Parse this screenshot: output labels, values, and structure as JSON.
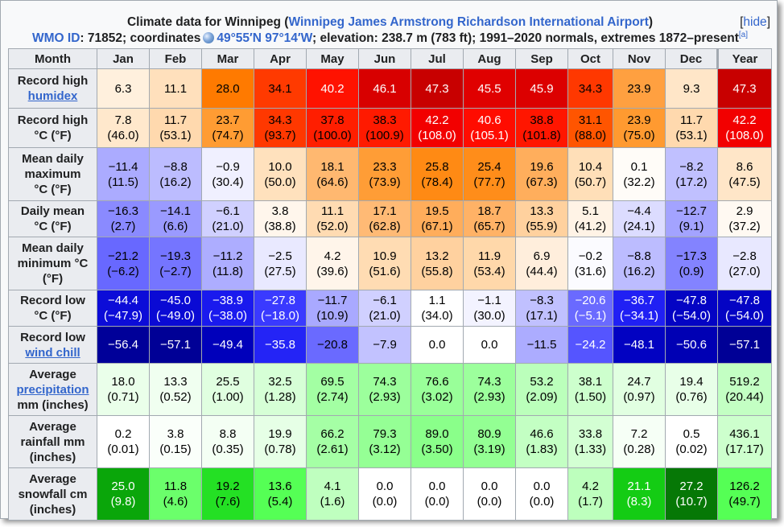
{
  "caption": {
    "prefix": "Climate data for Winnipeg (",
    "link": "Winnipeg James Armstrong Richardson International Airport",
    "suffix": ")",
    "hide_label": "hide",
    "wmo_label": "WMO ID",
    "wmo_rest": ": 71852; coordinates",
    "coords": "49°55′N 97°14′W",
    "rest": "; elevation: 238.7 m (783 ft); 1991–2020 normals, extremes 1872–present",
    "ref": "[a]"
  },
  "colors": {
    "link": "#3366cc",
    "header_bg": "#eaecf0",
    "border": "#a2a9b1"
  },
  "columns": [
    "Month",
    "Jan",
    "Feb",
    "Mar",
    "Apr",
    "May",
    "Jun",
    "Jul",
    "Aug",
    "Sep",
    "Oct",
    "Nov",
    "Dec",
    "Year"
  ],
  "rows": [
    {
      "label": [
        "Record high"
      ],
      "link": "humidex",
      "h": 49,
      "fg": "#000",
      "values": [
        {
          "v": [
            "6.3"
          ],
          "bg": "#fff0dd"
        },
        {
          "v": [
            "11.1"
          ],
          "bg": "#ffe0bc"
        },
        {
          "v": [
            "28.0"
          ],
          "bg": "#ff7a00"
        },
        {
          "v": [
            "34.1"
          ],
          "bg": "#ff3a00"
        },
        {
          "v": [
            "40.2"
          ],
          "bg": "#ff1200",
          "fg": "#fff"
        },
        {
          "v": [
            "46.1"
          ],
          "bg": "#d80000",
          "fg": "#fff"
        },
        {
          "v": [
            "47.3"
          ],
          "bg": "#c80000",
          "fg": "#fff"
        },
        {
          "v": [
            "45.5"
          ],
          "bg": "#e00000",
          "fg": "#fff"
        },
        {
          "v": [
            "45.9"
          ],
          "bg": "#dc0000",
          "fg": "#fff"
        },
        {
          "v": [
            "34.3"
          ],
          "bg": "#ff3800"
        },
        {
          "v": [
            "23.9"
          ],
          "bg": "#ffa040"
        },
        {
          "v": [
            "9.3"
          ],
          "bg": "#ffe6c8"
        },
        {
          "v": [
            "47.3"
          ],
          "bg": "#c80000",
          "fg": "#fff"
        }
      ]
    },
    {
      "label": [
        "Record high",
        "°C (°F)"
      ],
      "h": 49,
      "values": [
        {
          "v": [
            "7.8",
            "(46.0)"
          ],
          "bg": "#ffe8cc"
        },
        {
          "v": [
            "11.7",
            "(53.1)"
          ],
          "bg": "#ffd9ae"
        },
        {
          "v": [
            "23.7",
            "(74.7)"
          ],
          "bg": "#ff9c33"
        },
        {
          "v": [
            "34.3",
            "(93.7)"
          ],
          "bg": "#ff3800"
        },
        {
          "v": [
            "37.8",
            "(100.0)"
          ],
          "bg": "#ff1e00"
        },
        {
          "v": [
            "38.3",
            "(100.9)"
          ],
          "bg": "#ff1a00"
        },
        {
          "v": [
            "42.2",
            "(108.0)"
          ],
          "bg": "#f20000",
          "fg": "#fff"
        },
        {
          "v": [
            "40.6",
            "(105.1)"
          ],
          "bg": "#ff0c00",
          "fg": "#fff"
        },
        {
          "v": [
            "38.8",
            "(101.8)"
          ],
          "bg": "#ff1600"
        },
        {
          "v": [
            "31.1",
            "(88.0)"
          ],
          "bg": "#ff5500"
        },
        {
          "v": [
            "23.9",
            "(75.0)"
          ],
          "bg": "#ff9a30"
        },
        {
          "v": [
            "11.7",
            "(53.1)"
          ],
          "bg": "#ffd9ae"
        },
        {
          "v": [
            "42.2",
            "(108.0)"
          ],
          "bg": "#f20000",
          "fg": "#fff"
        }
      ]
    },
    {
      "label": [
        "Mean daily",
        "maximum",
        "°C (°F)"
      ],
      "h": 66,
      "values": [
        {
          "v": [
            "−11.4",
            "(11.5)"
          ],
          "bg": "#ababff"
        },
        {
          "v": [
            "−8.8",
            "(16.2)"
          ],
          "bg": "#bcbcff"
        },
        {
          "v": [
            "−0.9",
            "(30.4)"
          ],
          "bg": "#f0f0ff"
        },
        {
          "v": [
            "10.0",
            "(50.0)"
          ],
          "bg": "#ffe1bd"
        },
        {
          "v": [
            "18.1",
            "(64.6)"
          ],
          "bg": "#ffb870"
        },
        {
          "v": [
            "23.3",
            "(73.9)"
          ],
          "bg": "#ff9d36"
        },
        {
          "v": [
            "25.8",
            "(78.4)"
          ],
          "bg": "#ff8a14"
        },
        {
          "v": [
            "25.4",
            "(77.7)"
          ],
          "bg": "#ff8d1a"
        },
        {
          "v": [
            "19.6",
            "(67.3)"
          ],
          "bg": "#ffae5c"
        },
        {
          "v": [
            "10.4",
            "(50.7)"
          ],
          "bg": "#ffdfb8"
        },
        {
          "v": [
            "0.1",
            "(32.2)"
          ],
          "bg": "#fffcf8"
        },
        {
          "v": [
            "−8.2",
            "(17.2)"
          ],
          "bg": "#c0c0ff"
        },
        {
          "v": [
            "8.6",
            "(47.5)"
          ],
          "bg": "#ffe6c8"
        }
      ]
    },
    {
      "label": [
        "Daily mean",
        "°C (°F)"
      ],
      "h": 45,
      "values": [
        {
          "v": [
            "−16.3",
            "(2.7)"
          ],
          "bg": "#8a8aff"
        },
        {
          "v": [
            "−14.1",
            "(6.6)"
          ],
          "bg": "#9a9aff"
        },
        {
          "v": [
            "−6.1",
            "(21.0)"
          ],
          "bg": "#d0d0ff"
        },
        {
          "v": [
            "3.8",
            "(38.8)"
          ],
          "bg": "#fff6ec"
        },
        {
          "v": [
            "11.1",
            "(52.0)"
          ],
          "bg": "#ffdbb2"
        },
        {
          "v": [
            "17.1",
            "(62.8)"
          ],
          "bg": "#ffba75"
        },
        {
          "v": [
            "19.5",
            "(67.1)"
          ],
          "bg": "#ffad5b"
        },
        {
          "v": [
            "18.7",
            "(65.7)"
          ],
          "bg": "#ffb266"
        },
        {
          "v": [
            "13.3",
            "(55.9)"
          ],
          "bg": "#ffd19e"
        },
        {
          "v": [
            "5.1",
            "(41.2)"
          ],
          "bg": "#fff3e6"
        },
        {
          "v": [
            "−4.4",
            "(24.1)"
          ],
          "bg": "#dcdcff"
        },
        {
          "v": [
            "−12.7",
            "(9.1)"
          ],
          "bg": "#a3a3ff"
        },
        {
          "v": [
            "2.9",
            "(37.2)"
          ],
          "bg": "#fff9f2"
        }
      ]
    },
    {
      "label": [
        "Mean daily",
        "minimum °C",
        "(°F)"
      ],
      "h": 66,
      "values": [
        {
          "v": [
            "−21.2",
            "(−6.2)"
          ],
          "bg": "#6868ff"
        },
        {
          "v": [
            "−19.3",
            "(−2.7)"
          ],
          "bg": "#7575ff"
        },
        {
          "v": [
            "−11.2",
            "(11.8)"
          ],
          "bg": "#adadff"
        },
        {
          "v": [
            "−2.5",
            "(27.5)"
          ],
          "bg": "#e9e9ff"
        },
        {
          "v": [
            "4.2",
            "(39.6)"
          ],
          "bg": "#fff5ea"
        },
        {
          "v": [
            "10.9",
            "(51.6)"
          ],
          "bg": "#ffdcb3"
        },
        {
          "v": [
            "13.2",
            "(55.8)"
          ],
          "bg": "#ffd19f"
        },
        {
          "v": [
            "11.9",
            "(53.4)"
          ],
          "bg": "#ffd8aa"
        },
        {
          "v": [
            "6.9",
            "(44.4)"
          ],
          "bg": "#ffeedc"
        },
        {
          "v": [
            "−0.2",
            "(31.6)"
          ],
          "bg": "#fbfbff"
        },
        {
          "v": [
            "−8.8",
            "(16.2)"
          ],
          "bg": "#bcbcff"
        },
        {
          "v": [
            "−17.3",
            "(0.9)"
          ],
          "bg": "#8383ff"
        },
        {
          "v": [
            "−2.8",
            "(27.0)"
          ],
          "bg": "#e8e8ff"
        }
      ]
    },
    {
      "label": [
        "Record low",
        "°C (°F)"
      ],
      "h": 45,
      "fg": "#fff",
      "values": [
        {
          "v": [
            "−44.4",
            "(−47.9)"
          ],
          "bg": "#0c0cd8"
        },
        {
          "v": [
            "−45.0",
            "(−49.0)"
          ],
          "bg": "#0a0ad4"
        },
        {
          "v": [
            "−38.9",
            "(−38.0)"
          ],
          "bg": "#1a1aee"
        },
        {
          "v": [
            "−27.8",
            "(−18.0)"
          ],
          "bg": "#3a3aff"
        },
        {
          "v": [
            "−11.7",
            "(10.9)"
          ],
          "bg": "#a9a9ff",
          "fg": "#000"
        },
        {
          "v": [
            "−6.1",
            "(21.0)"
          ],
          "bg": "#d0d0ff",
          "fg": "#000"
        },
        {
          "v": [
            "1.1",
            "(34.0)"
          ],
          "bg": "#ffffff",
          "fg": "#000"
        },
        {
          "v": [
            "−1.1",
            "(30.0)"
          ],
          "bg": "#f3f3ff",
          "fg": "#000"
        },
        {
          "v": [
            "−8.3",
            "(17.1)"
          ],
          "bg": "#c0c0ff",
          "fg": "#000"
        },
        {
          "v": [
            "−20.6",
            "(−5.1)"
          ],
          "bg": "#6a6aff"
        },
        {
          "v": [
            "−36.7",
            "(−34.1)"
          ],
          "bg": "#2020f4"
        },
        {
          "v": [
            "−47.8",
            "(−54.0)"
          ],
          "bg": "#0404c4"
        },
        {
          "v": [
            "−47.8",
            "(−54.0)"
          ],
          "bg": "#0404c4"
        }
      ]
    },
    {
      "label": [
        "Record low"
      ],
      "link": "wind chill",
      "h": 46,
      "fg": "#fff",
      "values": [
        {
          "v": [
            "−56.4"
          ],
          "bg": "#000099"
        },
        {
          "v": [
            "−57.1"
          ],
          "bg": "#000096"
        },
        {
          "v": [
            "−49.4"
          ],
          "bg": "#0000bb"
        },
        {
          "v": [
            "−35.8"
          ],
          "bg": "#2424f6"
        },
        {
          "v": [
            "−20.8"
          ],
          "bg": "#6a6aff",
          "fg": "#000"
        },
        {
          "v": [
            "−7.9"
          ],
          "bg": "#c2c2ff",
          "fg": "#000"
        },
        {
          "v": [
            "0.0"
          ],
          "bg": "#ffffff",
          "fg": "#000"
        },
        {
          "v": [
            "0.0"
          ],
          "bg": "#ffffff",
          "fg": "#000"
        },
        {
          "v": [
            "−11.5"
          ],
          "bg": "#acacff",
          "fg": "#000"
        },
        {
          "v": [
            "−24.2"
          ],
          "bg": "#5555ff"
        },
        {
          "v": [
            "−48.1"
          ],
          "bg": "#0202c2"
        },
        {
          "v": [
            "−50.6"
          ],
          "bg": "#0000b4"
        },
        {
          "v": [
            "−57.1"
          ],
          "bg": "#000096"
        }
      ]
    },
    {
      "label": [
        "Average"
      ],
      "link": "precipitation",
      "label2": "mm (inches)",
      "h": 65,
      "values": [
        {
          "v": [
            "18.0",
            "(0.71)"
          ],
          "bg": "#eaffea"
        },
        {
          "v": [
            "13.3",
            "(0.52)"
          ],
          "bg": "#f0fff0"
        },
        {
          "v": [
            "25.5",
            "(1.00)"
          ],
          "bg": "#e0ffe0"
        },
        {
          "v": [
            "32.5",
            "(1.28)"
          ],
          "bg": "#d6ffd6"
        },
        {
          "v": [
            "69.5",
            "(2.74)"
          ],
          "bg": "#a3ffa3"
        },
        {
          "v": [
            "74.3",
            "(2.93)"
          ],
          "bg": "#9cff9c"
        },
        {
          "v": [
            "76.6",
            "(3.02)"
          ],
          "bg": "#99ff99"
        },
        {
          "v": [
            "74.3",
            "(2.93)"
          ],
          "bg": "#9cff9c"
        },
        {
          "v": [
            "53.2",
            "(2.09)"
          ],
          "bg": "#bbffbb"
        },
        {
          "v": [
            "38.1",
            "(1.50)"
          ],
          "bg": "#cdffcd"
        },
        {
          "v": [
            "24.7",
            "(0.97)"
          ],
          "bg": "#e1ffe1"
        },
        {
          "v": [
            "19.4",
            "(0.76)"
          ],
          "bg": "#e8ffe8"
        },
        {
          "v": [
            "519.2",
            "(20.44)"
          ],
          "bg": "#c3ffc3"
        }
      ]
    },
    {
      "label": [
        "Average",
        "rainfall mm",
        "(inches)"
      ],
      "h": 65,
      "values": [
        {
          "v": [
            "0.2",
            "(0.01)"
          ],
          "bg": "#ffffff"
        },
        {
          "v": [
            "3.8",
            "(0.15)"
          ],
          "bg": "#fafffa"
        },
        {
          "v": [
            "8.8",
            "(0.35)"
          ],
          "bg": "#f4fff4"
        },
        {
          "v": [
            "19.9",
            "(0.78)"
          ],
          "bg": "#e6ffe6"
        },
        {
          "v": [
            "66.2",
            "(2.61)"
          ],
          "bg": "#a5ffa5"
        },
        {
          "v": [
            "79.3",
            "(3.12)"
          ],
          "bg": "#95ff95"
        },
        {
          "v": [
            "89.0",
            "(3.50)"
          ],
          "bg": "#8aff8a"
        },
        {
          "v": [
            "80.9",
            "(3.19)"
          ],
          "bg": "#93ff93"
        },
        {
          "v": [
            "46.6",
            "(1.83)"
          ],
          "bg": "#c3ffc3"
        },
        {
          "v": [
            "33.8",
            "(1.33)"
          ],
          "bg": "#d3ffd3"
        },
        {
          "v": [
            "7.2",
            "(0.28)"
          ],
          "bg": "#f6fff6"
        },
        {
          "v": [
            "0.5",
            "(0.02)"
          ],
          "bg": "#ffffff"
        },
        {
          "v": [
            "436.1",
            "(17.17)"
          ],
          "bg": "#cdffcd"
        }
      ]
    },
    {
      "label": [
        "Average",
        "snowfall cm",
        "(inches)"
      ],
      "h": 65,
      "values": [
        {
          "v": [
            "25.0",
            "(9.8)"
          ],
          "bg": "#0aa60a",
          "fg": "#fff"
        },
        {
          "v": [
            "11.8",
            "(4.6)"
          ],
          "bg": "#6bff6b"
        },
        {
          "v": [
            "19.2",
            "(7.6)"
          ],
          "bg": "#24e024"
        },
        {
          "v": [
            "13.6",
            "(5.4)"
          ],
          "bg": "#55ff55"
        },
        {
          "v": [
            "4.1",
            "(1.6)"
          ],
          "bg": "#bfffbf"
        },
        {
          "v": [
            "0.0",
            "(0.0)"
          ],
          "bg": "#ffffff"
        },
        {
          "v": [
            "0.0",
            "(0.0)"
          ],
          "bg": "#ffffff"
        },
        {
          "v": [
            "0.0",
            "(0.0)"
          ],
          "bg": "#ffffff"
        },
        {
          "v": [
            "0.0",
            "(0.0)"
          ],
          "bg": "#ffffff"
        },
        {
          "v": [
            "4.2",
            "(1.7)"
          ],
          "bg": "#bdffbd"
        },
        {
          "v": [
            "21.1",
            "(8.3)"
          ],
          "bg": "#14cc14",
          "fg": "#fff"
        },
        {
          "v": [
            "27.2",
            "(10.7)"
          ],
          "bg": "#067806",
          "fg": "#fff"
        },
        {
          "v": [
            "126.2",
            "(49.7)"
          ],
          "bg": "#55ff55"
        }
      ]
    }
  ]
}
